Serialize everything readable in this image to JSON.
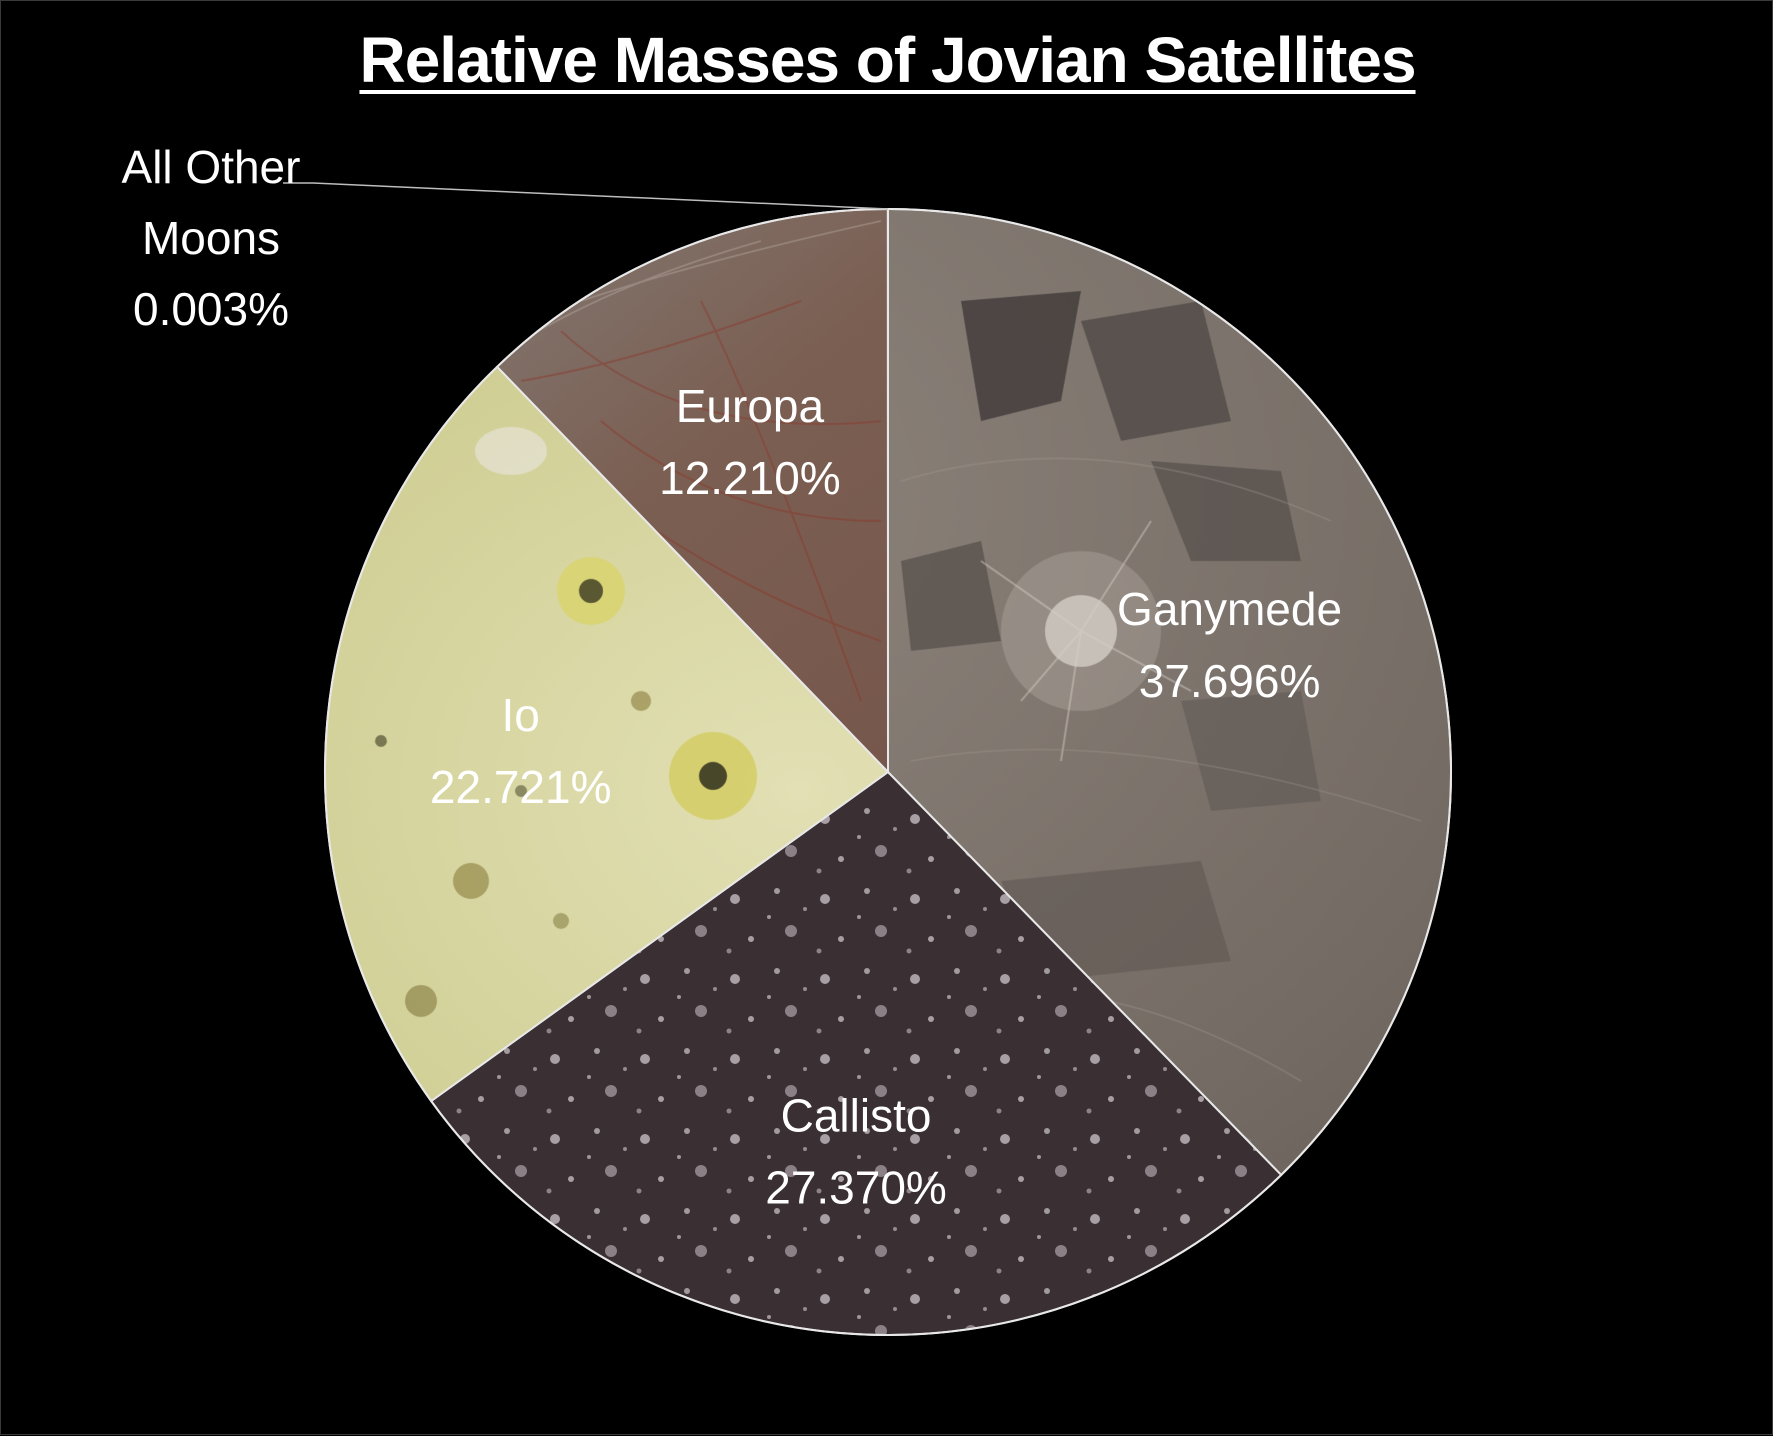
{
  "chart_data": {
    "type": "pie",
    "title": "Relative Masses of Jovian Satellites",
    "slices": [
      {
        "name": "Ganymede",
        "label": "Ganymede",
        "value": 37.696,
        "value_label": "37.696%",
        "color": "#7a716a",
        "texture": "ganymede"
      },
      {
        "name": "Callisto",
        "label": "Callisto",
        "value": 27.37,
        "value_label": "27.370%",
        "color": "#3f3436",
        "texture": "callisto"
      },
      {
        "name": "Io",
        "label": "Io",
        "value": 22.721,
        "value_label": "22.721%",
        "color": "#c4c486",
        "texture": "io"
      },
      {
        "name": "Europa",
        "label": "Europa",
        "value": 12.21,
        "value_label": "12.210%",
        "color": "#6e4f42",
        "texture": "europa"
      },
      {
        "name": "All Other Moons",
        "label_lines": [
          "All Other",
          "Moons"
        ],
        "value": 0.003,
        "value_label": "0.003%",
        "color": "#888888",
        "texture": "none",
        "leader_line": true
      }
    ],
    "start_angle": "12 o'clock",
    "direction": "clockwise",
    "slice_border_color": "#e8e8e8",
    "legend": "none",
    "labels": "on-slice"
  }
}
